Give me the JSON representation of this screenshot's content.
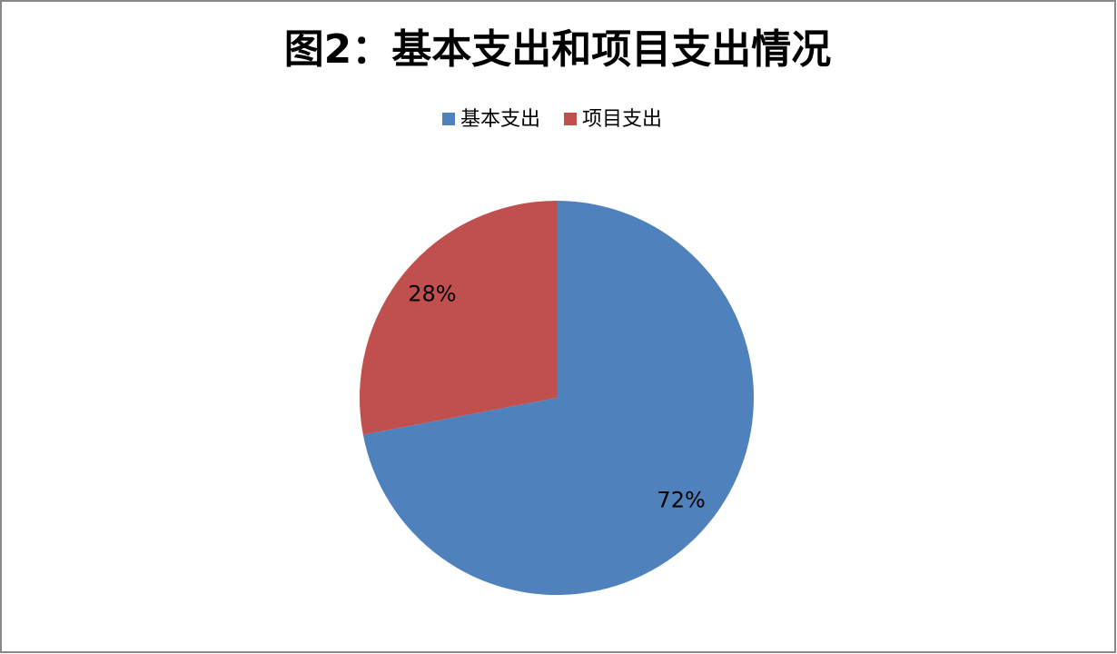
{
  "chart_data": {
    "type": "pie",
    "title": "图2：基本支出和项目支出情况",
    "categories": [
      "基本支出",
      "项目支出"
    ],
    "values": [
      72,
      28
    ],
    "value_labels": [
      "72%",
      "28%"
    ],
    "colors": [
      "#4f81bd",
      "#c0504d"
    ],
    "legend": "top"
  }
}
